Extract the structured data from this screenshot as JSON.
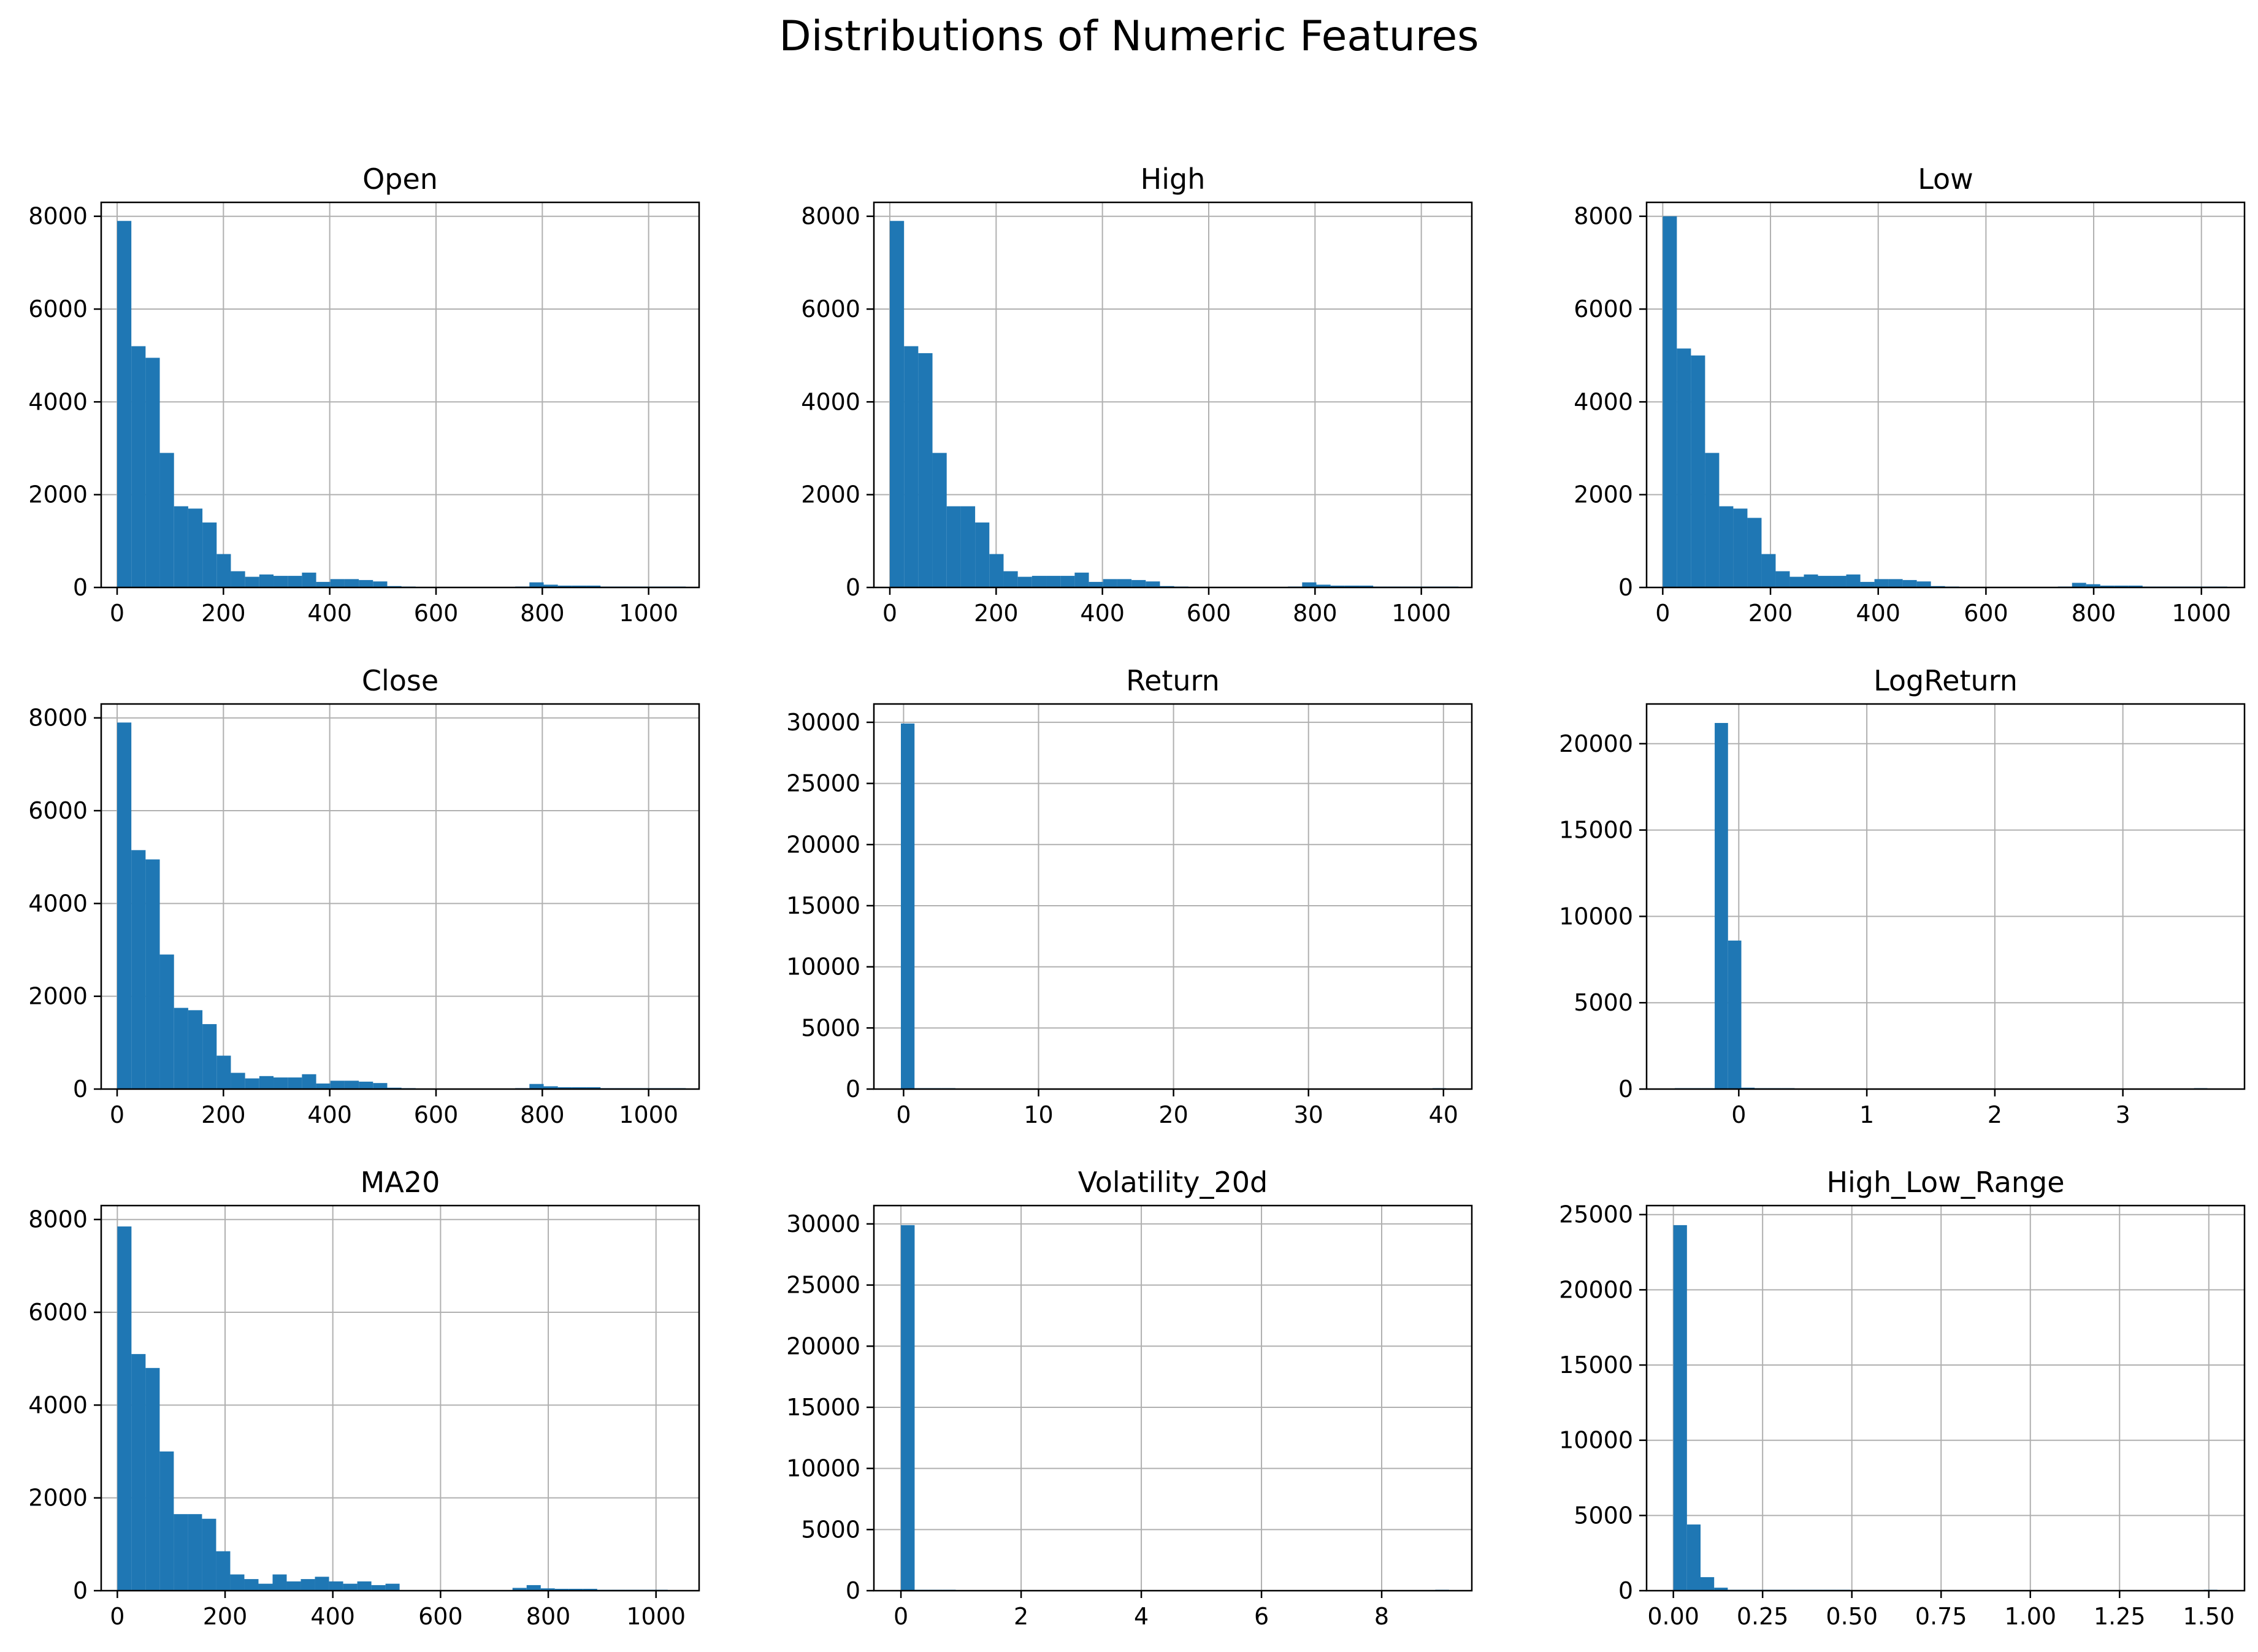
{
  "chart_data": {
    "title": "Distributions of Numeric Features",
    "type": "bar",
    "grid": true,
    "colors": {
      "bar": "#1f77b4",
      "grid": "#b0b0b0",
      "axis": "#000000"
    },
    "panels": [
      {
        "title": "Open",
        "type": "histogram",
        "bins": 40,
        "xlim": [
          -30,
          1095
        ],
        "ylim": [
          0,
          8300
        ],
        "xticks": [
          0,
          200,
          400,
          600,
          800,
          1000
        ],
        "xtick_labels": [
          "0",
          "200",
          "400",
          "600",
          "800",
          "1000"
        ],
        "yticks": [
          0,
          2000,
          4000,
          6000,
          8000
        ],
        "ytick_labels": [
          "0",
          "2000",
          "4000",
          "6000",
          "8000"
        ],
        "bin_start": 0,
        "bin_width": 26.75,
        "counts": [
          7900,
          5200,
          4950,
          2900,
          1750,
          1700,
          1400,
          720,
          350,
          230,
          280,
          250,
          250,
          320,
          120,
          180,
          180,
          160,
          130,
          30,
          20,
          0,
          0,
          0,
          0,
          0,
          0,
          0,
          20,
          110,
          60,
          40,
          40,
          40,
          20,
          20,
          10,
          10,
          10,
          10
        ]
      },
      {
        "title": "High",
        "type": "histogram",
        "bins": 40,
        "xlim": [
          -30,
          1095
        ],
        "ylim": [
          0,
          8300
        ],
        "xticks": [
          0,
          200,
          400,
          600,
          800,
          1000
        ],
        "xtick_labels": [
          "0",
          "200",
          "400",
          "600",
          "800",
          "1000"
        ],
        "yticks": [
          0,
          2000,
          4000,
          6000,
          8000
        ],
        "ytick_labels": [
          "0",
          "2000",
          "4000",
          "6000",
          "8000"
        ],
        "bin_start": 0,
        "bin_width": 26.75,
        "counts": [
          7900,
          5200,
          5050,
          2900,
          1750,
          1750,
          1400,
          720,
          350,
          230,
          250,
          250,
          250,
          320,
          120,
          180,
          180,
          160,
          130,
          30,
          20,
          0,
          0,
          0,
          0,
          0,
          0,
          0,
          20,
          110,
          60,
          40,
          40,
          40,
          20,
          20,
          10,
          10,
          10,
          10
        ]
      },
      {
        "title": "Low",
        "type": "histogram",
        "bins": 40,
        "xlim": [
          -30,
          1080
        ],
        "ylim": [
          0,
          8300
        ],
        "xticks": [
          0,
          200,
          400,
          600,
          800,
          1000
        ],
        "xtick_labels": [
          "0",
          "200",
          "400",
          "600",
          "800",
          "1000"
        ],
        "yticks": [
          0,
          2000,
          4000,
          6000,
          8000
        ],
        "ytick_labels": [
          "0",
          "2000",
          "4000",
          "6000",
          "8000"
        ],
        "bin_start": 0,
        "bin_width": 26.2,
        "counts": [
          8000,
          5150,
          5000,
          2900,
          1750,
          1700,
          1500,
          720,
          350,
          230,
          280,
          250,
          250,
          280,
          120,
          180,
          180,
          160,
          130,
          30,
          20,
          0,
          0,
          0,
          0,
          0,
          0,
          0,
          20,
          100,
          70,
          40,
          40,
          40,
          20,
          20,
          10,
          10,
          10,
          10
        ]
      },
      {
        "title": "Close",
        "type": "histogram",
        "bins": 40,
        "xlim": [
          -30,
          1095
        ],
        "ylim": [
          0,
          8300
        ],
        "xticks": [
          0,
          200,
          400,
          600,
          800,
          1000
        ],
        "xtick_labels": [
          "0",
          "200",
          "400",
          "600",
          "800",
          "1000"
        ],
        "yticks": [
          0,
          2000,
          4000,
          6000,
          8000
        ],
        "ytick_labels": [
          "0",
          "2000",
          "4000",
          "6000",
          "8000"
        ],
        "bin_start": 0,
        "bin_width": 26.75,
        "counts": [
          7900,
          5150,
          4950,
          2900,
          1750,
          1700,
          1400,
          720,
          350,
          230,
          280,
          250,
          250,
          320,
          120,
          180,
          180,
          160,
          130,
          30,
          20,
          0,
          0,
          0,
          0,
          0,
          0,
          0,
          20,
          110,
          60,
          40,
          40,
          40,
          20,
          20,
          10,
          10,
          10,
          10
        ]
      },
      {
        "title": "Return",
        "type": "histogram",
        "bins": 40,
        "xlim": [
          -2.2,
          42.1
        ],
        "ylim": [
          0,
          31500
        ],
        "xticks": [
          0,
          10,
          20,
          30,
          40
        ],
        "xtick_labels": [
          "0",
          "10",
          "20",
          "30",
          "40"
        ],
        "yticks": [
          0,
          5000,
          10000,
          15000,
          20000,
          25000,
          30000
        ],
        "ytick_labels": [
          "0",
          "5000",
          "10000",
          "15000",
          "20000",
          "25000",
          "30000"
        ],
        "bin_start": -0.2,
        "bin_width": 1.01,
        "counts": [
          29900,
          5,
          2,
          1,
          0,
          0,
          0,
          0,
          0,
          0,
          0,
          0,
          0,
          0,
          0,
          0,
          0,
          0,
          0,
          0,
          0,
          0,
          0,
          0,
          0,
          0,
          0,
          0,
          0,
          0,
          0,
          0,
          0,
          0,
          0,
          0,
          0,
          0,
          0,
          1
        ]
      },
      {
        "title": "LogReturn",
        "type": "histogram",
        "bins": 40,
        "xlim": [
          -0.72,
          3.95
        ],
        "ylim": [
          0,
          22300
        ],
        "xticks": [
          0,
          1,
          2,
          3
        ],
        "xtick_labels": [
          "0",
          "1",
          "2",
          "3"
        ],
        "yticks": [
          0,
          5000,
          10000,
          15000,
          20000
        ],
        "ytick_labels": [
          "0",
          "5000",
          "10000",
          "15000",
          "20000"
        ],
        "bin_start": -0.5,
        "bin_width": 0.104,
        "counts": [
          2,
          5,
          30,
          21200,
          8600,
          80,
          5,
          2,
          1,
          0,
          0,
          0,
          0,
          0,
          0,
          0,
          0,
          0,
          0,
          0,
          0,
          0,
          0,
          0,
          0,
          0,
          0,
          0,
          0,
          0,
          0,
          0,
          0,
          0,
          0,
          0,
          0,
          0,
          0,
          1
        ]
      },
      {
        "title": "MA20",
        "type": "histogram",
        "bins": 40,
        "xlim": [
          -30,
          1080
        ],
        "ylim": [
          0,
          8300
        ],
        "xticks": [
          0,
          200,
          400,
          600,
          800,
          1000
        ],
        "xtick_labels": [
          "0",
          "200",
          "400",
          "600",
          "800",
          "1000"
        ],
        "yticks": [
          0,
          2000,
          4000,
          6000,
          8000
        ],
        "ytick_labels": [
          "0",
          "2000",
          "4000",
          "6000",
          "8000"
        ],
        "bin_start": 0,
        "bin_width": 26.2,
        "counts": [
          7850,
          5100,
          4800,
          3000,
          1650,
          1650,
          1550,
          850,
          350,
          250,
          150,
          350,
          200,
          250,
          300,
          200,
          150,
          200,
          120,
          150,
          0,
          0,
          0,
          0,
          0,
          0,
          0,
          0,
          60,
          120,
          50,
          40,
          40,
          40,
          10,
          10,
          10,
          10,
          10,
          0
        ]
      },
      {
        "title": "Volatility_20d",
        "type": "histogram",
        "bins": 40,
        "xlim": [
          -0.45,
          9.5
        ],
        "ylim": [
          0,
          31500
        ],
        "xticks": [
          0,
          2,
          4,
          6,
          8
        ],
        "xtick_labels": [
          "0",
          "2",
          "4",
          "6",
          "8"
        ],
        "yticks": [
          0,
          5000,
          10000,
          15000,
          20000,
          25000,
          30000
        ],
        "ytick_labels": [
          "0",
          "5000",
          "10000",
          "15000",
          "20000",
          "25000",
          "30000"
        ],
        "bin_start": 0,
        "bin_width": 0.228,
        "counts": [
          29900,
          3,
          1,
          1,
          0,
          0,
          0,
          0,
          0,
          0,
          0,
          0,
          0,
          0,
          0,
          0,
          0,
          0,
          0,
          0,
          0,
          0,
          0,
          0,
          0,
          0,
          0,
          0,
          0,
          0,
          0,
          0,
          0,
          0,
          0,
          0,
          0,
          0,
          0,
          1
        ]
      },
      {
        "title": "High_Low_Range",
        "type": "histogram",
        "bins": 40,
        "xlim": [
          -0.075,
          1.6
        ],
        "ylim": [
          0,
          25600
        ],
        "xticks": [
          0,
          0.25,
          0.5,
          0.75,
          1.0,
          1.25,
          1.5
        ],
        "xtick_labels": [
          "0.00",
          "0.25",
          "0.50",
          "0.75",
          "1.00",
          "1.25",
          "1.50"
        ],
        "yticks": [
          0,
          5000,
          10000,
          15000,
          20000,
          25000
        ],
        "ytick_labels": [
          "0",
          "5000",
          "10000",
          "15000",
          "20000",
          "25000"
        ],
        "bin_start": 0,
        "bin_width": 0.0381,
        "counts": [
          24300,
          4400,
          900,
          200,
          50,
          20,
          10,
          5,
          3,
          2,
          1,
          1,
          1,
          0,
          0,
          0,
          0,
          0,
          0,
          0,
          0,
          0,
          0,
          0,
          0,
          0,
          0,
          0,
          0,
          0,
          0,
          0,
          0,
          0,
          0,
          0,
          0,
          0,
          0,
          1
        ]
      }
    ]
  }
}
